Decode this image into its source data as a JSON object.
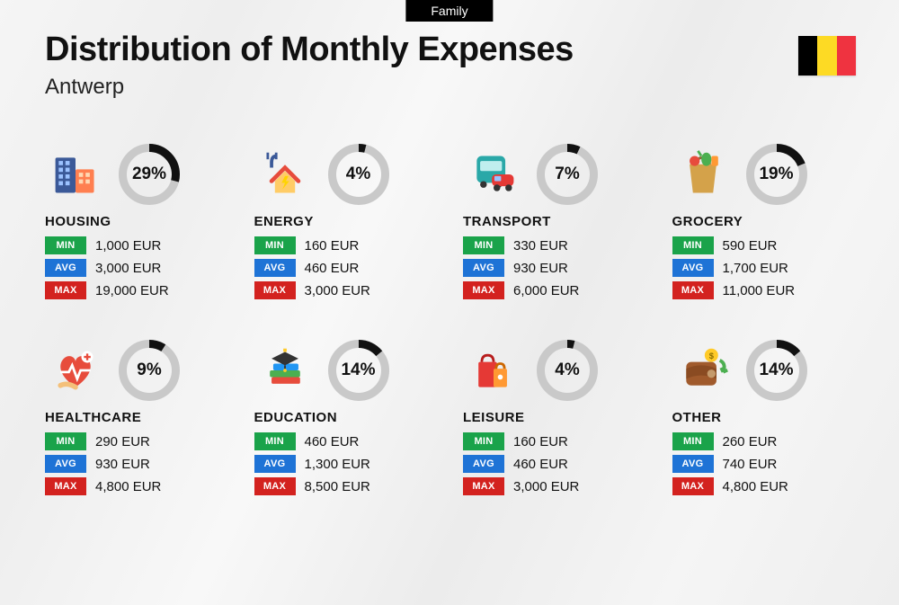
{
  "tab_label": "Family",
  "title": "Distribution of Monthly Expenses",
  "subtitle": "Antwerp",
  "flag_colors": [
    "#000000",
    "#fdda24",
    "#ef3340"
  ],
  "currency": "EUR",
  "ring": {
    "size": 68,
    "stroke_width": 9,
    "track_color": "#c9c9c9",
    "arc_color": "#111111"
  },
  "badges": {
    "min": {
      "label": "MIN",
      "color": "#1aa34a"
    },
    "avg": {
      "label": "AVG",
      "color": "#1e73d6"
    },
    "max": {
      "label": "MAX",
      "color": "#d3221f"
    }
  },
  "categories": [
    {
      "name": "HOUSING",
      "icon": "housing",
      "percent": 29,
      "min": "1,000",
      "avg": "3,000",
      "max": "19,000"
    },
    {
      "name": "ENERGY",
      "icon": "energy",
      "percent": 4,
      "min": "160",
      "avg": "460",
      "max": "3,000"
    },
    {
      "name": "TRANSPORT",
      "icon": "transport",
      "percent": 7,
      "min": "330",
      "avg": "930",
      "max": "6,000"
    },
    {
      "name": "GROCERY",
      "icon": "grocery",
      "percent": 19,
      "min": "590",
      "avg": "1,700",
      "max": "11,000"
    },
    {
      "name": "HEALTHCARE",
      "icon": "healthcare",
      "percent": 9,
      "min": "290",
      "avg": "930",
      "max": "4,800"
    },
    {
      "name": "EDUCATION",
      "icon": "education",
      "percent": 14,
      "min": "460",
      "avg": "1,300",
      "max": "8,500"
    },
    {
      "name": "LEISURE",
      "icon": "leisure",
      "percent": 4,
      "min": "160",
      "avg": "460",
      "max": "3,000"
    },
    {
      "name": "OTHER",
      "icon": "other",
      "percent": 14,
      "min": "260",
      "avg": "740",
      "max": "4,800"
    }
  ]
}
